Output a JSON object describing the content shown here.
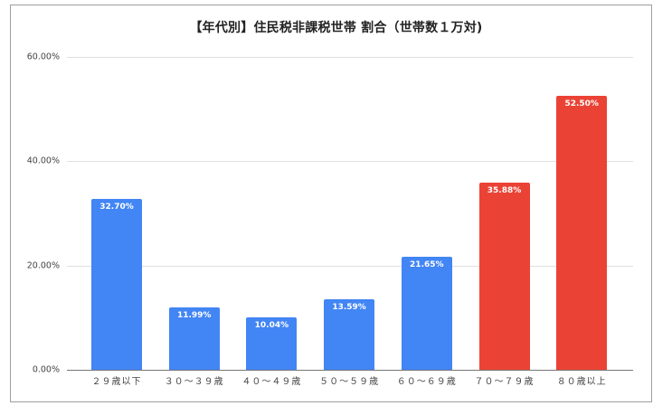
{
  "chart_data": {
    "type": "bar",
    "title": "【年代別】住民税非課税世帯 割合（世帯数１万対)",
    "xlabel": "",
    "ylabel": "",
    "ylim": [
      0,
      60
    ],
    "y_ticks": [
      "0.00%",
      "20.00%",
      "40.00%",
      "60.00%"
    ],
    "grid": true,
    "legend": null,
    "categories": [
      "２９歳以下",
      "３０～３９歳",
      "４０～４９歳",
      "５０～５９歳",
      "６０～６９歳",
      "７０～７９歳",
      "８０歳以上"
    ],
    "values": [
      32.7,
      11.99,
      10.04,
      13.59,
      21.65,
      35.88,
      52.5
    ],
    "value_labels": [
      "32.70%",
      "11.99%",
      "10.04%",
      "13.59%",
      "21.65%",
      "35.88%",
      "52.50%"
    ],
    "bar_colors": [
      "#4285F4",
      "#4285F4",
      "#4285F4",
      "#4285F4",
      "#4285F4",
      "#EA4335",
      "#EA4335"
    ]
  },
  "colors": {
    "blue": "#4285F4",
    "red": "#EA4335"
  }
}
